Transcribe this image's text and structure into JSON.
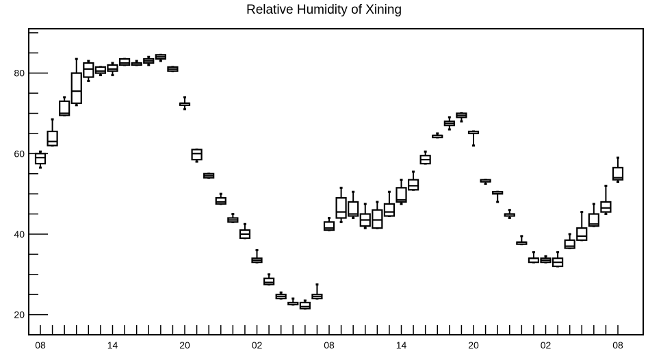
{
  "chart_data": {
    "type": "box",
    "title": "Relative Humidity of Xining",
    "xlabel": "",
    "ylabel": "",
    "ylim": [
      15,
      91
    ],
    "xlim": [
      0,
      49
    ],
    "y_ticks": [
      20,
      40,
      60,
      80
    ],
    "x_ticks": [
      {
        "x": 1,
        "label": "08"
      },
      {
        "x": 7,
        "label": "14"
      },
      {
        "x": 13,
        "label": "20"
      },
      {
        "x": 19,
        "label": "02"
      },
      {
        "x": 25,
        "label": "08"
      },
      {
        "x": 31,
        "label": "14"
      },
      {
        "x": 37,
        "label": "20"
      },
      {
        "x": 43,
        "label": "02"
      },
      {
        "x": 49,
        "label": "08"
      }
    ],
    "grid": false,
    "boxes": [
      {
        "x": 1,
        "min": 56.5,
        "q1": 57.5,
        "median": 59,
        "q3": 60,
        "max": 60.5
      },
      {
        "x": 2,
        "min": 62,
        "q1": 62,
        "median": 63,
        "q3": 65.5,
        "max": 68.5
      },
      {
        "x": 3,
        "min": 69.5,
        "q1": 69.5,
        "median": 70,
        "q3": 73,
        "max": 74
      },
      {
        "x": 4,
        "min": 72,
        "q1": 72.5,
        "median": 75.5,
        "q3": 80,
        "max": 83.5
      },
      {
        "x": 5,
        "min": 78,
        "q1": 79,
        "median": 81,
        "q3": 82.5,
        "max": 83
      },
      {
        "x": 6,
        "min": 79.5,
        "q1": 80,
        "median": 80.5,
        "q3": 81.5,
        "max": 81.5
      },
      {
        "x": 7,
        "min": 79.5,
        "q1": 80.5,
        "median": 81,
        "q3": 82,
        "max": 82.5
      },
      {
        "x": 8,
        "min": 82,
        "q1": 82,
        "median": 82.5,
        "q3": 83.5,
        "max": 83.5
      },
      {
        "x": 9,
        "min": 82,
        "q1": 82,
        "median": 82.5,
        "q3": 82.5,
        "max": 83
      },
      {
        "x": 10,
        "min": 82,
        "q1": 82.5,
        "median": 83,
        "q3": 83.5,
        "max": 84
      },
      {
        "x": 11,
        "min": 83,
        "q1": 83.5,
        "median": 84,
        "q3": 84.5,
        "max": 84.5
      },
      {
        "x": 12,
        "min": 80.5,
        "q1": 80.5,
        "median": 81,
        "q3": 81.5,
        "max": 81.5
      },
      {
        "x": 13,
        "min": 71,
        "q1": 72,
        "median": 72.5,
        "q3": 72.5,
        "max": 74
      },
      {
        "x": 14,
        "min": 58,
        "q1": 58.5,
        "median": 60,
        "q3": 61,
        "max": 61
      },
      {
        "x": 15,
        "min": 54,
        "q1": 54,
        "median": 54.5,
        "q3": 55,
        "max": 55
      },
      {
        "x": 16,
        "min": 47.5,
        "q1": 47.5,
        "median": 48,
        "q3": 49,
        "max": 50
      },
      {
        "x": 17,
        "min": 43,
        "q1": 43,
        "median": 43.5,
        "q3": 44,
        "max": 45
      },
      {
        "x": 18,
        "min": 39,
        "q1": 39,
        "median": 40,
        "q3": 41,
        "max": 42.5
      },
      {
        "x": 19,
        "min": 33,
        "q1": 33,
        "median": 33.5,
        "q3": 34,
        "max": 36
      },
      {
        "x": 20,
        "min": 27.5,
        "q1": 27.5,
        "median": 28,
        "q3": 29,
        "max": 30
      },
      {
        "x": 21,
        "min": 24,
        "q1": 24,
        "median": 24.5,
        "q3": 25,
        "max": 25.5
      },
      {
        "x": 22,
        "min": 22.5,
        "q1": 22.5,
        "median": 22.5,
        "q3": 23,
        "max": 24
      },
      {
        "x": 23,
        "min": 21.5,
        "q1": 21.5,
        "median": 22,
        "q3": 23,
        "max": 23.5
      },
      {
        "x": 24,
        "min": 24,
        "q1": 24,
        "median": 24.5,
        "q3": 25,
        "max": 27.5
      },
      {
        "x": 25,
        "min": 41,
        "q1": 41,
        "median": 41.5,
        "q3": 43,
        "max": 44
      },
      {
        "x": 26,
        "min": 43,
        "q1": 44,
        "median": 45.5,
        "q3": 49,
        "max": 51.5
      },
      {
        "x": 27,
        "min": 44,
        "q1": 44.5,
        "median": 45,
        "q3": 48,
        "max": 50.5
      },
      {
        "x": 28,
        "min": 41.5,
        "q1": 42,
        "median": 43.5,
        "q3": 45,
        "max": 47.5
      },
      {
        "x": 29,
        "min": 41.5,
        "q1": 41.5,
        "median": 43.5,
        "q3": 46,
        "max": 48
      },
      {
        "x": 30,
        "min": 44.5,
        "q1": 44.5,
        "median": 45.5,
        "q3": 47.5,
        "max": 50.5
      },
      {
        "x": 31,
        "min": 47.5,
        "q1": 48,
        "median": 48.5,
        "q3": 51.5,
        "max": 53.5
      },
      {
        "x": 32,
        "min": 51,
        "q1": 51,
        "median": 52,
        "q3": 53.5,
        "max": 55.5
      },
      {
        "x": 33,
        "min": 57.5,
        "q1": 57.5,
        "median": 58.5,
        "q3": 59.5,
        "max": 60.5
      },
      {
        "x": 34,
        "min": 64,
        "q1": 64,
        "median": 64.5,
        "q3": 64.5,
        "max": 65
      },
      {
        "x": 35,
        "min": 66,
        "q1": 67,
        "median": 67.5,
        "q3": 68,
        "max": 69
      },
      {
        "x": 36,
        "min": 68,
        "q1": 69,
        "median": 69.5,
        "q3": 70,
        "max": 70
      },
      {
        "x": 37,
        "min": 62,
        "q1": 65,
        "median": 65,
        "q3": 65.5,
        "max": 65.5
      },
      {
        "x": 38,
        "min": 52.5,
        "q1": 53,
        "median": 53,
        "q3": 53.5,
        "max": 53.5
      },
      {
        "x": 39,
        "min": 48,
        "q1": 50,
        "median": 50.5,
        "q3": 50.5,
        "max": 50.5
      },
      {
        "x": 40,
        "min": 44,
        "q1": 44.5,
        "median": 45,
        "q3": 45,
        "max": 46
      },
      {
        "x": 41,
        "min": 37.5,
        "q1": 37.5,
        "median": 38,
        "q3": 38,
        "max": 39.5
      },
      {
        "x": 42,
        "min": 33,
        "q1": 33,
        "median": 34,
        "q3": 34,
        "max": 35.5
      },
      {
        "x": 43,
        "min": 33,
        "q1": 33,
        "median": 33.5,
        "q3": 34,
        "max": 34.5
      },
      {
        "x": 44,
        "min": 32,
        "q1": 32,
        "median": 33,
        "q3": 34,
        "max": 35.5
      },
      {
        "x": 45,
        "min": 36.5,
        "q1": 36.5,
        "median": 37,
        "q3": 38.5,
        "max": 40
      },
      {
        "x": 46,
        "min": 38.5,
        "q1": 38.5,
        "median": 39.5,
        "q3": 41.5,
        "max": 45.5
      },
      {
        "x": 47,
        "min": 42,
        "q1": 42,
        "median": 42.5,
        "q3": 45,
        "max": 47.5
      },
      {
        "x": 48,
        "min": 45,
        "q1": 45.5,
        "median": 46.5,
        "q3": 48,
        "max": 52
      },
      {
        "x": 49,
        "min": 53,
        "q1": 53.5,
        "median": 54,
        "q3": 56.5,
        "max": 59
      }
    ]
  }
}
